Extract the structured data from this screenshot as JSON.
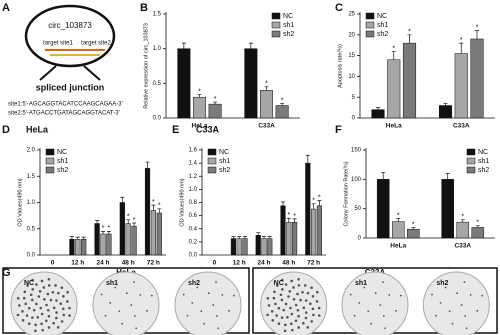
{
  "diagram": {
    "panel": "A",
    "circle_label": "circ_103873",
    "site1": "target site1",
    "site2": "target site2",
    "junction": "spliced junction",
    "seq1": "site1:5'-AGCAGGTACATCCAAGCAGAA-3'",
    "seq2": "site2:5'-ATGACCTGATAGCAGGTACAT-3'"
  },
  "chart_data": [
    {
      "type": "bar",
      "panel": "B",
      "ylabel": "Relative expression of circ_103873",
      "categories": [
        "HeLa",
        "C33A"
      ],
      "series": [
        {
          "name": "NC",
          "color": "#111111",
          "values": [
            1.0,
            1.0
          ],
          "errors": [
            0.08,
            0.08
          ],
          "markers": [
            null,
            null
          ]
        },
        {
          "name": "sh1",
          "color": "#a6a6a6",
          "values": [
            0.3,
            0.4
          ],
          "errors": [
            0.04,
            0.05
          ],
          "markers": [
            "*",
            "*"
          ]
        },
        {
          "name": "sh2",
          "color": "#7a7a7a",
          "values": [
            0.2,
            0.18
          ],
          "errors": [
            0.03,
            0.03
          ],
          "markers": [
            "*",
            "*"
          ]
        }
      ],
      "ylim": [
        0,
        1.5
      ],
      "yticks": [
        {
          "value": 0,
          "label": "0.0"
        },
        0.5,
        {
          "value": 1,
          "label": "1.0"
        },
        1.5
      ],
      "legend": "upper right"
    },
    {
      "type": "bar",
      "panel": "C",
      "ylabel": "Apoptosis rate(%)",
      "categories": [
        "HeLa",
        "C33A"
      ],
      "series": [
        {
          "name": "NC",
          "color": "#111111",
          "values": [
            2,
            3
          ],
          "errors": [
            0.5,
            0.5
          ],
          "markers": [
            null,
            null
          ]
        },
        {
          "name": "sh1",
          "color": "#a6a6a6",
          "values": [
            14,
            15.5
          ],
          "errors": [
            2,
            2.5
          ],
          "markers": [
            "*",
            "*"
          ]
        },
        {
          "name": "sh2",
          "color": "#7a7a7a",
          "values": [
            18,
            19
          ],
          "errors": [
            2,
            2
          ],
          "markers": [
            "*",
            "*"
          ]
        }
      ],
      "ylim": [
        0,
        25
      ],
      "yticks": [
        0,
        5,
        10,
        15,
        20,
        25
      ],
      "legend": "upper left"
    },
    {
      "type": "bar",
      "panel": "D",
      "title": "HeLa",
      "ylabel": "OD Values(490 nm)",
      "categories": [
        "0",
        "12 h",
        "24 h",
        "48 h",
        "72 h"
      ],
      "series": [
        {
          "name": "NC",
          "color": "#111111",
          "values": [
            null,
            0.3,
            0.6,
            1.0,
            1.65
          ],
          "errors": [
            null,
            0.05,
            0.06,
            0.1,
            0.12
          ],
          "markers": [
            null,
            null,
            null,
            null,
            null
          ]
        },
        {
          "name": "sh1",
          "color": "#a6a6a6",
          "values": [
            null,
            0.3,
            0.4,
            0.6,
            0.85
          ],
          "errors": [
            null,
            0.04,
            0.05,
            0.07,
            0.1
          ],
          "markers": [
            null,
            null,
            "*",
            "*",
            "*"
          ]
        },
        {
          "name": "sh2",
          "color": "#7a7a7a",
          "values": [
            null,
            0.3,
            0.4,
            0.55,
            0.8
          ],
          "errors": [
            null,
            0.04,
            0.05,
            0.06,
            0.08
          ],
          "markers": [
            null,
            null,
            "*",
            "*",
            "*"
          ]
        }
      ],
      "ylim": [
        0,
        2
      ],
      "yticks": [
        {
          "value": 0,
          "label": "0.0"
        },
        0.5,
        {
          "value": 1,
          "label": "1.0"
        },
        1.5,
        {
          "value": 2,
          "label": "2.0"
        }
      ],
      "legend": "upper left"
    },
    {
      "type": "bar",
      "panel": "E",
      "title": "C33A",
      "ylabel": "OD Values(490 nm)",
      "categories": [
        "0",
        "12 h",
        "24 h",
        "48 h",
        "72 h"
      ],
      "series": [
        {
          "name": "NC",
          "color": "#111111",
          "values": [
            null,
            0.25,
            0.3,
            0.75,
            1.4
          ],
          "errors": [
            null,
            0.03,
            0.04,
            0.06,
            0.12
          ],
          "markers": [
            null,
            null,
            null,
            null,
            null
          ]
        },
        {
          "name": "sh1",
          "color": "#a6a6a6",
          "values": [
            null,
            0.25,
            0.25,
            0.5,
            0.7
          ],
          "errors": [
            null,
            0.03,
            0.03,
            0.06,
            0.08
          ],
          "markers": [
            null,
            null,
            null,
            "*",
            "*"
          ]
        },
        {
          "name": "sh2",
          "color": "#7a7a7a",
          "values": [
            null,
            0.25,
            0.25,
            0.5,
            0.75
          ],
          "errors": [
            null,
            0.03,
            0.03,
            0.05,
            0.08
          ],
          "markers": [
            null,
            null,
            null,
            "*",
            "*"
          ]
        }
      ],
      "ylim": [
        0,
        1.6
      ],
      "yticks": [
        {
          "value": 0,
          "label": "0.0"
        },
        0.2,
        0.4,
        0.6,
        0.8,
        {
          "value": 1,
          "label": "1.0"
        },
        1.2,
        1.4,
        1.6
      ],
      "legend": "upper left"
    },
    {
      "type": "bar",
      "panel": "F",
      "ylabel": "Colony Formation Rate(%)",
      "categories": [
        "HeLa",
        "C33A"
      ],
      "series": [
        {
          "name": "NC",
          "color": "#111111",
          "values": [
            100,
            100
          ],
          "errors": [
            12,
            10
          ],
          "markers": [
            null,
            null
          ]
        },
        {
          "name": "sh1",
          "color": "#a6a6a6",
          "values": [
            28,
            27
          ],
          "errors": [
            5,
            4
          ],
          "markers": [
            "*",
            "*"
          ]
        },
        {
          "name": "sh2",
          "color": "#7a7a7a",
          "values": [
            15,
            18
          ],
          "errors": [
            3,
            3
          ],
          "markers": [
            "*",
            "*"
          ]
        }
      ],
      "ylim": [
        0,
        150
      ],
      "yticks": [
        0,
        50,
        100,
        150
      ],
      "legend": "upper right"
    }
  ],
  "plates": {
    "panel": "G",
    "groups": [
      {
        "title": "HeLa",
        "labels": [
          "NC",
          "sh1",
          "sh2"
        ]
      },
      {
        "title": "C33A",
        "labels": [
          "NC",
          "sh1",
          "sh2"
        ]
      }
    ]
  }
}
